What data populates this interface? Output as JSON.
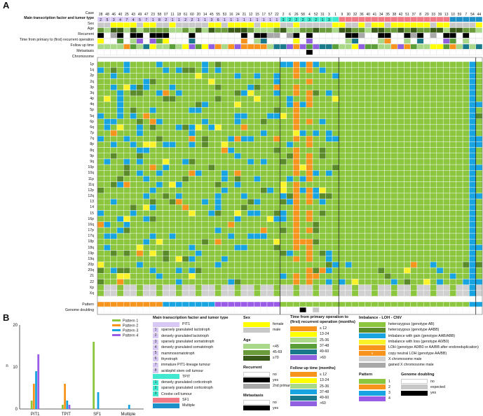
{
  "panel_a": "A",
  "panel_b": "B",
  "heatmap": {
    "header_rows": [
      {
        "label": "Case",
        "key": "case"
      },
      {
        "label": "Main transcription factor and tumor type",
        "key": "tf",
        "bold": true
      },
      {
        "label": "Sex",
        "key": "sex"
      },
      {
        "label": "Age",
        "key": "age"
      },
      {
        "label": "Recurrent",
        "key": "rec"
      },
      {
        "label": "Time from primary to (first) recurrent operation",
        "key": "time"
      },
      {
        "label": "Follow up time",
        "key": "fu"
      },
      {
        "label": "Metastasis",
        "key": "met"
      },
      {
        "label": "Chromosome",
        "key": "chr"
      }
    ],
    "cases": [
      "28",
      "48",
      "46",
      "40",
      "25",
      "43",
      "49",
      "47",
      "23",
      "58",
      "07",
      "11",
      "18",
      "61",
      "60",
      "20",
      "14",
      "45",
      "55",
      "53",
      "16",
      "24",
      "21",
      "12",
      "15",
      "17",
      "57",
      "22",
      "2",
      "6",
      "26",
      "58",
      "4",
      "52",
      "31",
      "3",
      "1",
      "9",
      "30",
      "32",
      "36",
      "40",
      "41",
      "34",
      "35",
      "38",
      "42",
      "51",
      "37",
      "8",
      "29",
      "33",
      "39",
      "13",
      "10",
      "59",
      "7",
      "54",
      "44"
    ],
    "tf_numbers": [
      "2",
      "5",
      "3",
      "4",
      "7",
      "4",
      "5",
      "7",
      "1",
      "8",
      "2",
      "1",
      "1",
      "2",
      "2",
      "1",
      "1",
      "3",
      "6",
      "1",
      "1",
      "1",
      "1",
      "1",
      "1",
      "1",
      "1",
      "1",
      "3",
      "2",
      "2",
      "2",
      "3",
      "2",
      "1",
      "3",
      "",
      "",
      "",
      "",
      "",
      "",
      "",
      "",
      "",
      "",
      "",
      "",
      "",
      "",
      "",
      "",
      "",
      "",
      "",
      "",
      "",
      "",
      ""
    ],
    "groups": [
      {
        "start": 0,
        "end": 28,
        "pattern": 2
      },
      {
        "start": 28,
        "end": 37,
        "pattern": 1
      },
      {
        "start": 37,
        "end": 58,
        "pattern": 4
      },
      {
        "start": 58,
        "end": 59,
        "pattern": 3
      }
    ],
    "chromosomes": [
      "1p",
      "1q",
      "2p",
      "2q",
      "3p",
      "3q",
      "4p",
      "4q",
      "5p",
      "5q",
      "6p",
      "6q",
      "7p",
      "7q",
      "8p",
      "8q",
      "9p",
      "9q",
      "10p",
      "10q",
      "11p",
      "11q",
      "12p",
      "12q",
      "13",
      "14",
      "15",
      "16p",
      "16q",
      "17p",
      "17q",
      "18p",
      "18q",
      "19p",
      "19q",
      "20p",
      "20q",
      "21",
      "22",
      "Xp",
      "Xq"
    ],
    "bottom_rows": [
      {
        "label": "Pattern"
      },
      {
        "label": "Genome doubling"
      }
    ]
  },
  "colors": {
    "ab": "#8cc63f",
    "aabb": "#5a8a2a",
    "gain": "#18a4e0",
    "loss": "#fbf22a",
    "loh": "#f7941d",
    "cn_loh": "#f7941d",
    "xmale": "#d0d0d0",
    "gained_x": "#a8a8a8",
    "pit1": "#d8c8f4",
    "tpit": "#40e8d0",
    "sf1": "#f07a86",
    "multiple": "#1e90c8",
    "female": "#ffff00",
    "male": "#c8c8c8",
    "age1": "#a8d888",
    "age2": "#6a9c3c",
    "age3": "#3a5a1a",
    "t1": "#f7941d",
    "t2": "#ffff00",
    "t3": "#a8d888",
    "t4": "#5a9e3a",
    "t5": "#1a7a8c",
    "t6": "#9060e0",
    "p1": "#8cc63f",
    "p2": "#f7941d",
    "p3": "#18a4e0",
    "p4": "#9a5ce6"
  },
  "legend": {
    "tf": {
      "title": "Main transcription factor and tumor type",
      "pit1": "PIT1",
      "pit1_items": [
        {
          "n": "1",
          "t": "sparsely granulated lactotroph"
        },
        {
          "n": "2",
          "t": "densely granulated lactotroph"
        },
        {
          "n": "3",
          "t": "sparsely granulated somatotroph"
        },
        {
          "n": "4",
          "t": "densely granulated somatotroph"
        },
        {
          "n": "5",
          "t": "mammosomatotroph"
        },
        {
          "n": "6",
          "t": "thyrotroph"
        },
        {
          "n": "7",
          "t": "immature PIT1-lineage tumour"
        },
        {
          "n": "8",
          "t": "acidophil stem cell tumour"
        }
      ],
      "tpit": "TPIT",
      "tpit_items": [
        {
          "n": "1",
          "t": "densely granulated corticotroph"
        },
        {
          "n": "2",
          "t": "sparsely granulated corticotroph"
        },
        {
          "n": "3",
          "t": "Crooke cell tumour"
        }
      ],
      "sf1": "SF1",
      "multiple": "Multiple"
    },
    "sex": {
      "title": "Sex",
      "items": [
        "female",
        "male"
      ]
    },
    "age": {
      "title": "Age",
      "items": [
        "<45",
        "45-69",
        "≥70"
      ]
    },
    "recurrent": {
      "title": "Recurrent",
      "items": [
        "no",
        "yes",
        "2nd primary"
      ]
    },
    "metastasis": {
      "title": "Metastasis",
      "items": [
        "no",
        "yes"
      ]
    },
    "time": {
      "title": "Time from primary operation to (first) recurrent operation (months)",
      "items": [
        "≤ 12",
        "13-24",
        "25-36",
        "37-48",
        "49-60",
        ">60"
      ]
    },
    "followup": {
      "title": "Follow up time (months)",
      "items": [
        "≤ 12",
        "13-24",
        "25-36",
        "37-48",
        "49-60",
        ">60"
      ]
    },
    "imbalance": {
      "title": "Imbalance - LOH - CNV",
      "items": [
        "heterozygous (genotype AB)",
        "heterozygous (genotype AABB)",
        "imbalance with gain (genotype AAB/ABB)",
        "imbalance with loss (genotype A0/B0)",
        "LOH (genotype A0/B0 or AA/BB after endoreduplication)",
        "copy neutral LOH (genotype AA/BB)",
        "X chromosome male",
        "gained X chromosome male"
      ]
    },
    "pattern": {
      "title": "Pattern",
      "items": [
        "1",
        "2",
        "3",
        "4"
      ]
    },
    "genome_doubling": {
      "title": "Genome doubling",
      "items": [
        "no",
        "expected",
        "yes"
      ]
    }
  },
  "chart_data": {
    "type": "bar",
    "categories": [
      "PIT1",
      "TPIT",
      "SF1",
      "Multiple"
    ],
    "series": [
      {
        "name": "Pattern 1",
        "values": [
          2,
          1,
          16,
          0
        ]
      },
      {
        "name": "Pattern 2",
        "values": [
          6,
          6,
          0,
          0
        ]
      },
      {
        "name": "Pattern 3",
        "values": [
          9,
          2,
          4,
          1
        ]
      },
      {
        "name": "Pattern 4",
        "values": [
          13,
          1,
          0,
          0
        ]
      }
    ],
    "ylabel": "n",
    "ylim": [
      0,
      20
    ],
    "yticks": [
      0,
      10,
      20
    ],
    "legend_position": "top-right"
  }
}
